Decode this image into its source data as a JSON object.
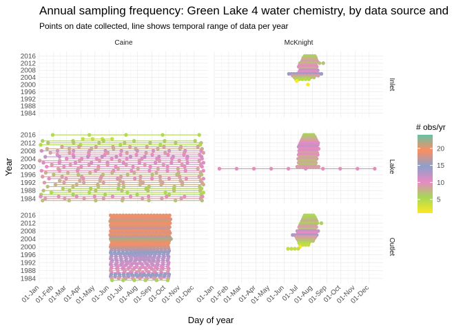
{
  "chart_data": {
    "type": "scatter",
    "title": "Annual sampling frequency: Green Lake 4 water chemistry, by data source and",
    "subtitle": "Points on date collected, line shows temporal range of data per year",
    "xlabel": "Day of year",
    "ylabel": "Year",
    "x_ticks": [
      "01-Jan",
      "01-Feb",
      "01-Mar",
      "01-Apr",
      "01-May",
      "01-Jun",
      "01-Jul",
      "01-Aug",
      "01-Sep",
      "01-Oct",
      "01-Nov",
      "01-Dec"
    ],
    "x_tick_doy": [
      1,
      32,
      60,
      91,
      121,
      152,
      182,
      213,
      244,
      274,
      305,
      335
    ],
    "xlim": [
      1,
      365
    ],
    "y_ticks": [
      1984,
      1988,
      1992,
      1996,
      2000,
      2004,
      2008,
      2012,
      2016
    ],
    "ylim": [
      1981.5,
      2018.5
    ],
    "grid": true,
    "columns": [
      "Caine",
      "McKnight"
    ],
    "rows": [
      "Inlet",
      "Lake",
      "Outlet"
    ],
    "legend": {
      "title": "# obs/yr",
      "position": "right",
      "breaks": [
        5,
        10,
        15,
        20
      ],
      "range": [
        1,
        24
      ],
      "colors": [
        "#FDE725",
        "#A6D854",
        "#E78AC3",
        "#8DA0CB",
        "#FC8D62",
        "#66C2A5"
      ]
    },
    "panels": [
      {
        "column": "Caine",
        "row": "Inlet",
        "years": []
      },
      {
        "column": "McKnight",
        "row": "Inlet",
        "years": [
          {
            "year": 2016,
            "n": 6,
            "start": 196,
            "end": 218
          },
          {
            "year": 2015,
            "n": 7,
            "start": 193,
            "end": 220
          },
          {
            "year": 2014,
            "n": 8,
            "start": 192,
            "end": 221
          },
          {
            "year": 2013,
            "n": 9,
            "start": 190,
            "end": 223
          },
          {
            "year": 2012,
            "n": 7,
            "start": 186,
            "end": 236
          },
          {
            "year": 2011,
            "n": 9,
            "start": 185,
            "end": 220
          },
          {
            "year": 2010,
            "n": 10,
            "start": 183,
            "end": 222
          },
          {
            "year": 2009,
            "n": 8,
            "start": 188,
            "end": 218
          },
          {
            "year": 2008,
            "n": 12,
            "start": 186,
            "end": 224
          },
          {
            "year": 2007,
            "n": 10,
            "start": 184,
            "end": 220
          },
          {
            "year": 2006,
            "n": 14,
            "start": 162,
            "end": 232
          },
          {
            "year": 2005,
            "n": 9,
            "start": 170,
            "end": 225
          },
          {
            "year": 2004,
            "n": 7,
            "start": 174,
            "end": 216
          },
          {
            "year": 2003,
            "n": 5,
            "start": 177,
            "end": 205
          },
          {
            "year": 2002,
            "n": 1,
            "start": 179,
            "end": 179
          },
          {
            "year": 2000,
            "n": 1,
            "start": 203,
            "end": 203
          }
        ]
      },
      {
        "column": "Caine",
        "row": "Lake",
        "years": [
          {
            "year": 2016,
            "n": 5,
            "start": 30,
            "end": 346
          },
          {
            "year": 2014,
            "n": 4,
            "start": 95,
            "end": 158
          },
          {
            "year": 2013,
            "n": 6,
            "start": 8,
            "end": 337
          },
          {
            "year": 2012,
            "n": 7,
            "start": 20,
            "end": 350
          },
          {
            "year": 2011,
            "n": 5,
            "start": 4,
            "end": 348
          },
          {
            "year": 2010,
            "n": 9,
            "start": 50,
            "end": 343
          },
          {
            "year": 2009,
            "n": 8,
            "start": 18,
            "end": 352
          },
          {
            "year": 2008,
            "n": 11,
            "start": 6,
            "end": 350
          },
          {
            "year": 2007,
            "n": 9,
            "start": 25,
            "end": 355
          },
          {
            "year": 2006,
            "n": 10,
            "start": 40,
            "end": 347
          },
          {
            "year": 2005,
            "n": 12,
            "start": 14,
            "end": 351
          },
          {
            "year": 2004,
            "n": 10,
            "start": 60,
            "end": 352
          },
          {
            "year": 2003,
            "n": 9,
            "start": 2,
            "end": 346
          },
          {
            "year": 2002,
            "n": 11,
            "start": 10,
            "end": 355
          },
          {
            "year": 2001,
            "n": 9,
            "start": 28,
            "end": 349
          },
          {
            "year": 2000,
            "n": 10,
            "start": 17,
            "end": 352
          },
          {
            "year": 1999,
            "n": 8,
            "start": 42,
            "end": 343
          },
          {
            "year": 1998,
            "n": 10,
            "start": 6,
            "end": 355
          },
          {
            "year": 1997,
            "n": 8,
            "start": 15,
            "end": 349
          },
          {
            "year": 1996,
            "n": 7,
            "start": 32,
            "end": 351
          },
          {
            "year": 1995,
            "n": 9,
            "start": 8,
            "end": 346
          },
          {
            "year": 1994,
            "n": 10,
            "start": 22,
            "end": 355
          },
          {
            "year": 1993,
            "n": 8,
            "start": 45,
            "end": 349
          },
          {
            "year": 1992,
            "n": 9,
            "start": 12,
            "end": 352
          },
          {
            "year": 1991,
            "n": 8,
            "start": 36,
            "end": 355
          },
          {
            "year": 1990,
            "n": 7,
            "start": 19,
            "end": 347
          },
          {
            "year": 1989,
            "n": 6,
            "start": 52,
            "end": 351
          },
          {
            "year": 1988,
            "n": 7,
            "start": 10,
            "end": 348
          },
          {
            "year": 1987,
            "n": 5,
            "start": 27,
            "end": 355
          },
          {
            "year": 1986,
            "n": 6,
            "start": 5,
            "end": 350
          },
          {
            "year": 1985,
            "n": 10,
            "start": 4,
            "end": 353
          },
          {
            "year": 1984,
            "n": 9,
            "start": 14,
            "end": 349
          },
          {
            "year": 1983,
            "n": 7,
            "start": 8,
            "end": 352
          }
        ]
      },
      {
        "column": "McKnight",
        "row": "Lake",
        "years": [
          {
            "year": 2016,
            "n": 6,
            "start": 195,
            "end": 215
          },
          {
            "year": 2015,
            "n": 7,
            "start": 193,
            "end": 218
          },
          {
            "year": 2014,
            "n": 8,
            "start": 191,
            "end": 220
          },
          {
            "year": 2013,
            "n": 9,
            "start": 189,
            "end": 222
          },
          {
            "year": 2012,
            "n": 10,
            "start": 187,
            "end": 225
          },
          {
            "year": 2011,
            "n": 11,
            "start": 185,
            "end": 224
          },
          {
            "year": 2010,
            "n": 12,
            "start": 183,
            "end": 222
          },
          {
            "year": 2009,
            "n": 10,
            "start": 186,
            "end": 226
          },
          {
            "year": 2008,
            "n": 11,
            "start": 184,
            "end": 221
          },
          {
            "year": 2007,
            "n": 9,
            "start": 185,
            "end": 223
          },
          {
            "year": 2006,
            "n": 10,
            "start": 183,
            "end": 224
          },
          {
            "year": 2005,
            "n": 8,
            "start": 186,
            "end": 220
          },
          {
            "year": 2004,
            "n": 9,
            "start": 182,
            "end": 222
          },
          {
            "year": 2003,
            "n": 7,
            "start": 185,
            "end": 218
          },
          {
            "year": 2002,
            "n": 8,
            "start": 183,
            "end": 220
          },
          {
            "year": 2001,
            "n": 7,
            "start": 186,
            "end": 219
          },
          {
            "year": 2000,
            "n": 9,
            "start": 180,
            "end": 226
          },
          {
            "year": 1999,
            "n": 10,
            "start": 12,
            "end": 347
          }
        ]
      },
      {
        "column": "Caine",
        "row": "Outlet",
        "years": [
          {
            "year": 2016,
            "n": 20,
            "start": 155,
            "end": 282
          },
          {
            "year": 2015,
            "n": 19,
            "start": 158,
            "end": 280
          },
          {
            "year": 2014,
            "n": 18,
            "start": 156,
            "end": 284
          },
          {
            "year": 2013,
            "n": 21,
            "start": 154,
            "end": 281
          },
          {
            "year": 2012,
            "n": 19,
            "start": 157,
            "end": 283
          },
          {
            "year": 2011,
            "n": 20,
            "start": 155,
            "end": 280
          },
          {
            "year": 2010,
            "n": 18,
            "start": 156,
            "end": 282
          },
          {
            "year": 2009,
            "n": 17,
            "start": 158,
            "end": 279
          },
          {
            "year": 2008,
            "n": 19,
            "start": 155,
            "end": 281
          },
          {
            "year": 2007,
            "n": 18,
            "start": 157,
            "end": 283
          },
          {
            "year": 2006,
            "n": 20,
            "start": 154,
            "end": 280
          },
          {
            "year": 2005,
            "n": 17,
            "start": 156,
            "end": 282
          },
          {
            "year": 2004,
            "n": 22,
            "start": 155,
            "end": 285
          },
          {
            "year": 2003,
            "n": 21,
            "start": 157,
            "end": 281
          },
          {
            "year": 2002,
            "n": 20,
            "start": 158,
            "end": 280
          },
          {
            "year": 2001,
            "n": 19,
            "start": 156,
            "end": 278
          },
          {
            "year": 2000,
            "n": 18,
            "start": 155,
            "end": 279
          },
          {
            "year": 1999,
            "n": 17,
            "start": 157,
            "end": 280
          },
          {
            "year": 1998,
            "n": 16,
            "start": 156,
            "end": 281
          },
          {
            "year": 1997,
            "n": 15,
            "start": 155,
            "end": 279
          },
          {
            "year": 1996,
            "n": 14,
            "start": 157,
            "end": 278
          },
          {
            "year": 1995,
            "n": 13,
            "start": 156,
            "end": 280
          },
          {
            "year": 1994,
            "n": 12,
            "start": 155,
            "end": 279
          },
          {
            "year": 1993,
            "n": 13,
            "start": 158,
            "end": 278
          },
          {
            "year": 1992,
            "n": 11,
            "start": 156,
            "end": 280
          },
          {
            "year": 1991,
            "n": 12,
            "start": 155,
            "end": 279
          },
          {
            "year": 1990,
            "n": 10,
            "start": 157,
            "end": 278
          },
          {
            "year": 1989,
            "n": 11,
            "start": 156,
            "end": 280
          },
          {
            "year": 1988,
            "n": 9,
            "start": 155,
            "end": 279
          },
          {
            "year": 1987,
            "n": 10,
            "start": 157,
            "end": 278
          },
          {
            "year": 1986,
            "n": 15,
            "start": 156,
            "end": 281
          },
          {
            "year": 1985,
            "n": 14,
            "start": 155,
            "end": 280
          },
          {
            "year": 1984,
            "n": 9,
            "start": 157,
            "end": 279
          },
          {
            "year": 1983,
            "n": 6,
            "start": 158,
            "end": 278
          }
        ]
      },
      {
        "column": "McKnight",
        "row": "Outlet",
        "years": [
          {
            "year": 2016,
            "n": 5,
            "start": 196,
            "end": 215
          },
          {
            "year": 2015,
            "n": 6,
            "start": 194,
            "end": 218
          },
          {
            "year": 2014,
            "n": 7,
            "start": 192,
            "end": 220
          },
          {
            "year": 2013,
            "n": 8,
            "start": 190,
            "end": 222
          },
          {
            "year": 2012,
            "n": 6,
            "start": 188,
            "end": 232
          },
          {
            "year": 2011,
            "n": 8,
            "start": 186,
            "end": 219
          },
          {
            "year": 2010,
            "n": 9,
            "start": 184,
            "end": 221
          },
          {
            "year": 2009,
            "n": 7,
            "start": 186,
            "end": 217
          },
          {
            "year": 2008,
            "n": 12,
            "start": 180,
            "end": 225
          },
          {
            "year": 2007,
            "n": 10,
            "start": 182,
            "end": 220
          },
          {
            "year": 2006,
            "n": 13,
            "start": 170,
            "end": 222
          },
          {
            "year": 2005,
            "n": 9,
            "start": 178,
            "end": 219
          },
          {
            "year": 2004,
            "n": 8,
            "start": 180,
            "end": 216
          },
          {
            "year": 2003,
            "n": 7,
            "start": 183,
            "end": 214
          },
          {
            "year": 2002,
            "n": 5,
            "start": 184,
            "end": 205
          },
          {
            "year": 2001,
            "n": 4,
            "start": 186,
            "end": 204
          },
          {
            "year": 2000,
            "n": 1,
            "start": 186,
            "end": 186
          },
          {
            "year": 1999,
            "n": 4,
            "start": 160,
            "end": 182
          }
        ]
      }
    ]
  }
}
